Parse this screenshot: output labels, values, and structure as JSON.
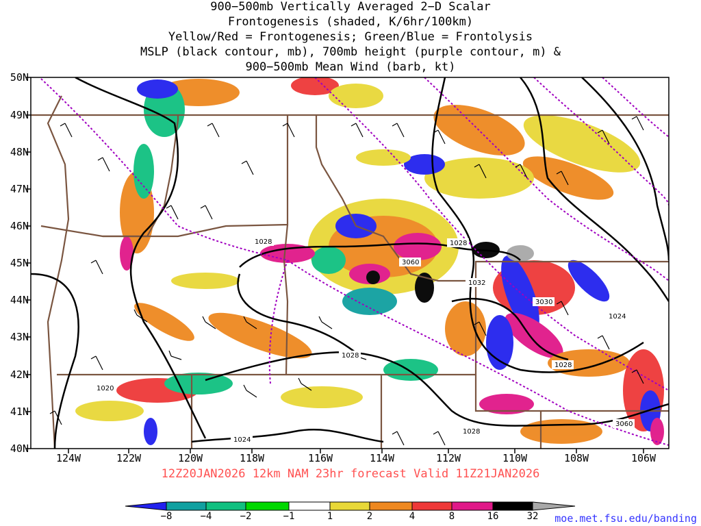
{
  "title_lines": [
    "900−500mb Vertically Averaged 2−D Scalar",
    "Frontogenesis (shaded, K/6hr/100km)",
    "Yellow/Red = Frontogenesis;  Green/Blue = Frontolysis",
    "MSLP (black contour, mb), 700mb height (purple contour, m) &",
    "900−500mb Mean Wind (barb, kt)"
  ],
  "lat_labels": [
    "50N",
    "49N",
    "48N",
    "47N",
    "46N",
    "45N",
    "44N",
    "43N",
    "42N",
    "41N",
    "40N"
  ],
  "lon_labels": [
    "124W",
    "122W",
    "120W",
    "118W",
    "116W",
    "114W",
    "112W",
    "110W",
    "108W",
    "106W"
  ],
  "valid_text": "12Z20JAN2026 12km NAM 23hr forecast Valid 11Z21JAN2026",
  "contour_labels": {
    "mslp": [
      "1028",
      "1028",
      "1032",
      "1024",
      "1028",
      "1028",
      "1020",
      "1024",
      "1028"
    ],
    "height": [
      "3060",
      "3030",
      "3060"
    ]
  },
  "colorbar": {
    "labels": [
      "−8",
      "−4",
      "−2",
      "−1",
      "1",
      "2",
      "4",
      "8",
      "16",
      "32"
    ],
    "colors": [
      "#2222ee",
      "#10a0a0",
      "#10c080",
      "#00d800",
      "#ffffff",
      "#e8d838",
      "#ee8820",
      "#ee3838",
      "#e01888",
      "#000000",
      "#a8a8a8"
    ]
  },
  "credit": "moe.met.fsu.edu/banding",
  "colors": {
    "mslp": "#000000",
    "height": "#a000c0",
    "borders": "#7a5540",
    "valid": "#ff5050"
  }
}
